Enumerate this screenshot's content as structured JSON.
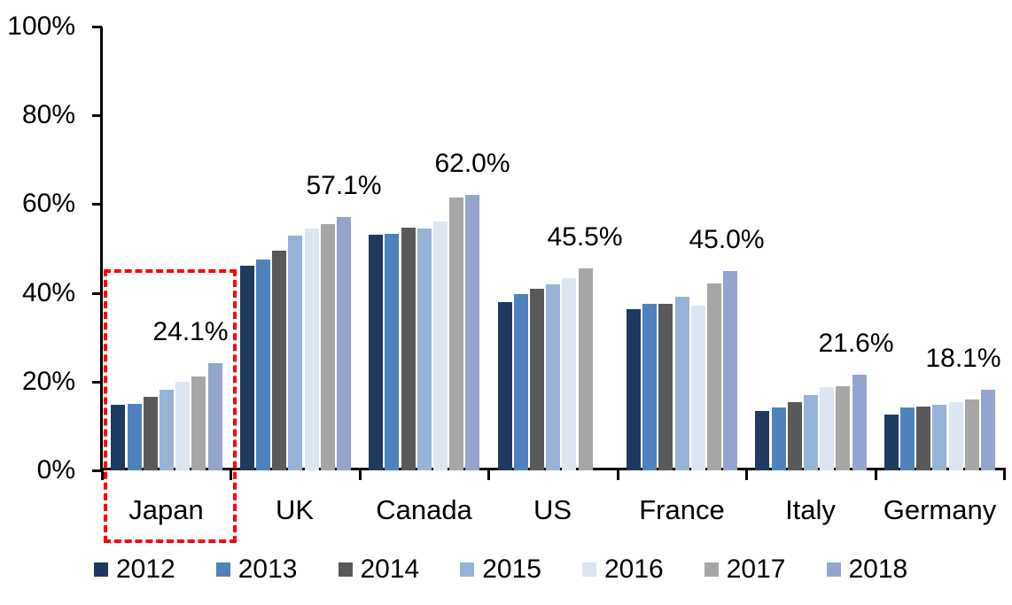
{
  "chart_data": {
    "type": "bar",
    "title": "",
    "categories": [
      "Japan",
      "UK",
      "Canada",
      "US",
      "France",
      "Italy",
      "Germany"
    ],
    "series": [
      {
        "name": "2012",
        "color": "#1F3A60",
        "values": [
          14.8,
          46.2,
          53.0,
          38.0,
          36.3,
          13.4,
          12.6
        ]
      },
      {
        "name": "2013",
        "color": "#4F81BD",
        "values": [
          15.0,
          47.5,
          53.3,
          39.7,
          37.5,
          14.2,
          14.1
        ]
      },
      {
        "name": "2014",
        "color": "#595959",
        "values": [
          16.6,
          49.5,
          54.6,
          40.9,
          37.5,
          15.4,
          14.4
        ]
      },
      {
        "name": "2015",
        "color": "#95B3D7",
        "values": [
          18.2,
          52.9,
          54.4,
          41.9,
          39.1,
          16.9,
          14.8
        ]
      },
      {
        "name": "2016",
        "color": "#DCE6F2",
        "values": [
          19.9,
          54.4,
          56.0,
          43.3,
          37.2,
          18.8,
          15.3
        ]
      },
      {
        "name": "2017",
        "color": "#A6A6A6",
        "values": [
          21.1,
          55.5,
          61.4,
          45.5,
          42.1,
          19.0,
          15.9
        ]
      },
      {
        "name": "2018",
        "color": "#93A5CD",
        "values": [
          24.1,
          57.1,
          62.0,
          null,
          45.0,
          21.6,
          18.1
        ]
      }
    ],
    "data_labels": [
      {
        "category": "Japan",
        "text": "24.1%",
        "dx": -27
      },
      {
        "category": "UK",
        "text": "57.1%",
        "dx": 0
      },
      {
        "category": "Canada",
        "text": "62.0%",
        "dx": 0
      },
      {
        "category": "US",
        "text": "45.5%",
        "dx": 0
      },
      {
        "category": "France",
        "text": "45.0%",
        "dx": -4
      },
      {
        "category": "Italy",
        "text": "21.6%",
        "dx": -3
      },
      {
        "category": "Germany",
        "text": "18.1%",
        "dx": -28
      }
    ],
    "y_ticks": [
      "0%",
      "20%",
      "40%",
      "60%",
      "80%",
      "100%"
    ],
    "ylim": [
      0,
      100
    ],
    "grid": false,
    "legend_position": "bottom",
    "highlight": {
      "target": "Japan",
      "style": "dashed-rectangle",
      "color": "#FF0000"
    }
  }
}
